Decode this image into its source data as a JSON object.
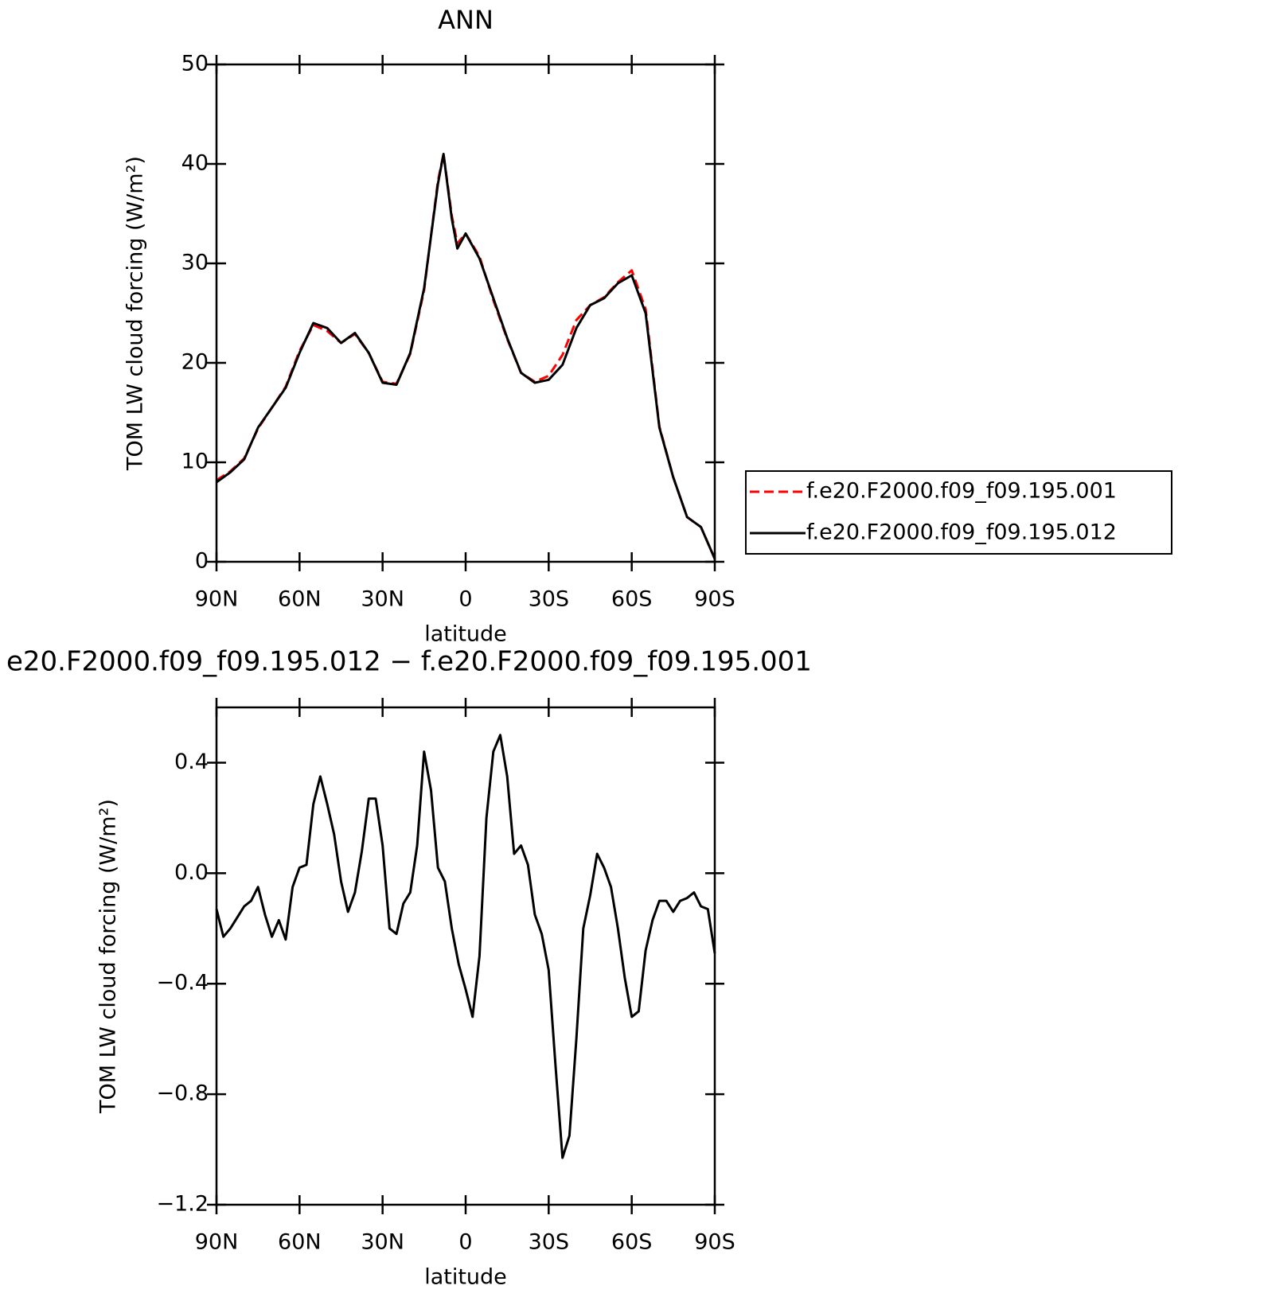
{
  "chart_data": [
    {
      "type": "line",
      "title": "ANN",
      "xlabel": "latitude",
      "ylabel": "TOM LW cloud forcing (W/m²)",
      "x": [
        90,
        85,
        80,
        75,
        70,
        65,
        60,
        55,
        50,
        45,
        40,
        35,
        30,
        25,
        20,
        15,
        10,
        8,
        5,
        3,
        0,
        -5,
        -10,
        -15,
        -20,
        -25,
        -30,
        -35,
        -40,
        -45,
        -50,
        -55,
        -60,
        -65,
        -70,
        -75,
        -80,
        -85,
        -90
      ],
      "series": [
        {
          "name": "f.e20.F2000.f09_f09.195.001",
          "color": "#ff0000",
          "line_style": "dashed",
          "values": [
            8.2,
            9.1,
            10.4,
            13.4,
            15.5,
            17.6,
            21.2,
            23.8,
            23.2,
            22.0,
            22.9,
            21.0,
            18.1,
            17.9,
            20.9,
            27.3,
            38.3,
            41.0,
            34.8,
            32.0,
            33.0,
            30.7,
            26.3,
            22.4,
            19.0,
            18.1,
            18.7,
            20.8,
            24.3,
            25.8,
            26.6,
            28.1,
            29.3,
            25.4,
            13.6,
            8.5,
            4.5,
            3.5,
            0.3
          ]
        },
        {
          "name": "f.e20.F2000.f09_f09.195.012",
          "color": "#000000",
          "line_style": "solid",
          "values": [
            8.0,
            9.0,
            10.3,
            13.5,
            15.5,
            17.5,
            21.0,
            24.0,
            23.5,
            22.0,
            23.0,
            21.0,
            18.0,
            17.8,
            21.0,
            27.5,
            38.0,
            41.0,
            34.5,
            31.5,
            33.0,
            30.5,
            26.5,
            22.5,
            19.0,
            18.0,
            18.3,
            19.8,
            23.5,
            25.8,
            26.5,
            28.0,
            28.8,
            25.0,
            13.5,
            8.5,
            4.5,
            3.5,
            0.3
          ]
        }
      ],
      "xlim": [
        90,
        -90
      ],
      "xticks": [
        {
          "value": 90,
          "label": "90N"
        },
        {
          "value": 60,
          "label": "60N"
        },
        {
          "value": 30,
          "label": "30N"
        },
        0,
        {
          "value": -30,
          "label": "30S"
        },
        {
          "value": -60,
          "label": "60S"
        },
        {
          "value": -90,
          "label": "90S"
        }
      ],
      "ylim": [
        0,
        50
      ],
      "yticks": [
        0,
        10,
        20,
        30,
        40,
        50
      ],
      "legend": "right"
    },
    {
      "type": "line",
      "title": "e20.F2000.f09_f09.195.012 − f.e20.F2000.f09_f09.195.001",
      "xlabel": "latitude",
      "ylabel": "TOM LW cloud forcing (W/m²)",
      "x": [
        90,
        87.5,
        85,
        82.5,
        80,
        77.5,
        75,
        72.5,
        70,
        67.5,
        65,
        62.5,
        60,
        57.5,
        55,
        52.5,
        50,
        47.5,
        45,
        42.5,
        40,
        37.5,
        35,
        32.5,
        30,
        27.5,
        25,
        22.5,
        20,
        17.5,
        15,
        12.5,
        10,
        7.5,
        5,
        2.5,
        0,
        -2.5,
        -5,
        -7.5,
        -10,
        -12.5,
        -15,
        -17.5,
        -20,
        -22.5,
        -25,
        -27.5,
        -30,
        -32.5,
        -35,
        -37.5,
        -40,
        -42.5,
        -45,
        -47.5,
        -50,
        -52.5,
        -55,
        -57.5,
        -60,
        -62.5,
        -65,
        -67.5,
        -70,
        -72.5,
        -75,
        -77.5,
        -80,
        -82.5,
        -85,
        -87.5,
        -90
      ],
      "series": [
        {
          "name": "f.e20.F2000.f09_f09.195.012",
          "color": "#000000",
          "line_style": "solid",
          "values": [
            -0.13,
            -0.23,
            -0.2,
            -0.16,
            -0.12,
            -0.1,
            -0.05,
            -0.15,
            -0.23,
            -0.17,
            -0.24,
            -0.05,
            0.02,
            0.03,
            0.25,
            0.35,
            0.25,
            0.14,
            -0.03,
            -0.14,
            -0.07,
            0.08,
            0.27,
            0.27,
            0.1,
            -0.2,
            -0.22,
            -0.11,
            -0.07,
            0.1,
            0.44,
            0.3,
            0.02,
            -0.03,
            -0.2,
            -0.33,
            -0.42,
            -0.52,
            -0.3,
            0.2,
            0.44,
            0.5,
            0.35,
            0.07,
            0.1,
            0.03,
            -0.15,
            -0.22,
            -0.35,
            -0.7,
            -1.03,
            -0.95,
            -0.6,
            -0.2,
            -0.08,
            0.07,
            0.02,
            -0.05,
            -0.2,
            -0.38,
            -0.52,
            -0.5,
            -0.28,
            -0.17,
            -0.1,
            -0.1,
            -0.14,
            -0.1,
            -0.09,
            -0.07,
            -0.12,
            -0.13,
            -0.29
          ]
        }
      ],
      "xlim": [
        90,
        -90
      ],
      "xticks": [
        {
          "value": 90,
          "label": "90N"
        },
        {
          "value": 60,
          "label": "60N"
        },
        {
          "value": 30,
          "label": "30N"
        },
        0,
        {
          "value": -30,
          "label": "30S"
        },
        {
          "value": -60,
          "label": "60S"
        },
        {
          "value": -90,
          "label": "90S"
        }
      ],
      "ylim": [
        -1.2,
        0.6
      ],
      "yticks": [
        {
          "value": -1.2,
          "label": "−1.2"
        },
        {
          "value": -0.8,
          "label": "−0.8"
        },
        {
          "value": -0.4,
          "label": "−0.4"
        },
        {
          "value": 0,
          "label": "0.0"
        },
        0.4
      ]
    }
  ]
}
